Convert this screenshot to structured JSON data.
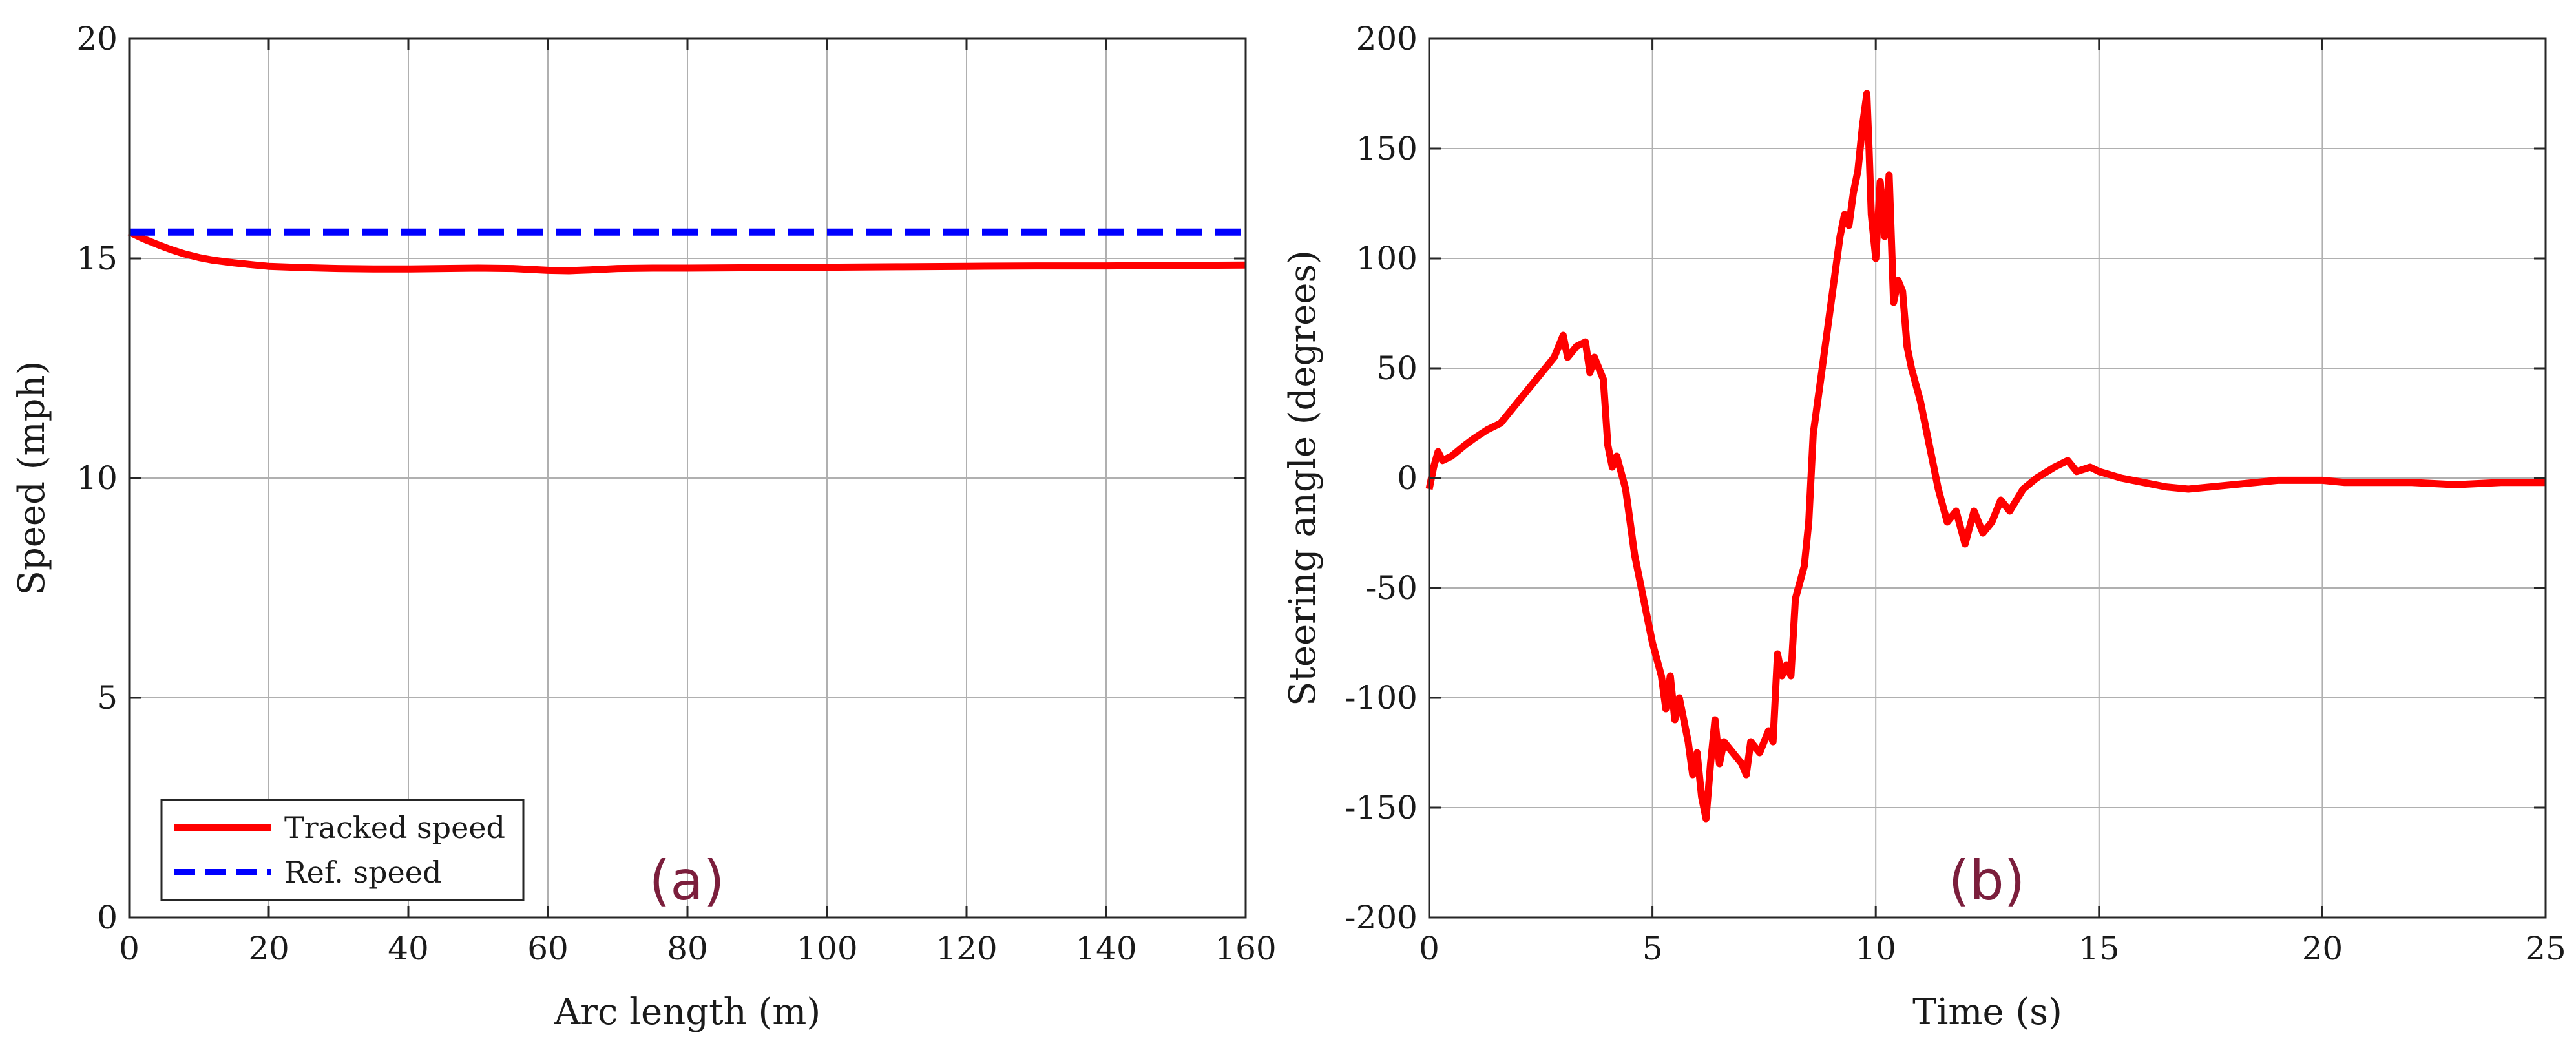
{
  "chart_data": [
    {
      "type": "line",
      "panel_label": "(a)",
      "xlabel": "Arc length (m)",
      "ylabel": "Speed (mph)",
      "xlim": [
        0,
        160
      ],
      "ylim": [
        0,
        20
      ],
      "xticks": [
        0,
        20,
        40,
        60,
        80,
        100,
        120,
        140,
        160
      ],
      "yticks": [
        0,
        5,
        10,
        15,
        20
      ],
      "grid": true,
      "legend_position": "bottom-left",
      "series": [
        {
          "name": "Tracked speed",
          "color": "#ff0000",
          "style": "solid",
          "x": [
            0,
            2,
            4,
            6,
            8,
            10,
            12,
            15,
            18,
            20,
            25,
            30,
            35,
            40,
            45,
            50,
            55,
            60,
            63,
            66,
            70,
            75,
            80,
            90,
            100,
            110,
            120,
            130,
            140,
            150,
            160
          ],
          "y": [
            15.6,
            15.45,
            15.32,
            15.2,
            15.1,
            15.02,
            14.96,
            14.9,
            14.85,
            14.82,
            14.79,
            14.77,
            14.76,
            14.76,
            14.77,
            14.78,
            14.77,
            14.73,
            14.72,
            14.74,
            14.77,
            14.78,
            14.78,
            14.79,
            14.8,
            14.81,
            14.82,
            14.83,
            14.83,
            14.84,
            14.85
          ]
        },
        {
          "name": "Ref. speed",
          "color": "#0000ff",
          "style": "dashed",
          "x": [
            0,
            160
          ],
          "y": [
            15.6,
            15.6
          ]
        }
      ]
    },
    {
      "type": "line",
      "panel_label": "(b)",
      "xlabel": "Time (s)",
      "ylabel": "Steering angle (degrees)",
      "xlim": [
        0,
        25
      ],
      "ylim": [
        -200,
        200
      ],
      "xticks": [
        0,
        5,
        10,
        15,
        20,
        25
      ],
      "yticks": [
        -200,
        -150,
        -100,
        -50,
        0,
        50,
        100,
        150,
        200
      ],
      "grid": true,
      "series": [
        {
          "color": "#ff0000",
          "style": "solid",
          "x": [
            0,
            0.1,
            0.2,
            0.3,
            0.5,
            0.8,
            1.0,
            1.3,
            1.6,
            2.0,
            2.4,
            2.8,
            3.0,
            3.1,
            3.3,
            3.5,
            3.6,
            3.7,
            3.8,
            3.9,
            4.0,
            4.1,
            4.2,
            4.4,
            4.6,
            4.8,
            5.0,
            5.2,
            5.3,
            5.4,
            5.5,
            5.6,
            5.8,
            5.9,
            6.0,
            6.1,
            6.2,
            6.3,
            6.4,
            6.5,
            6.6,
            6.8,
            7.0,
            7.1,
            7.2,
            7.4,
            7.6,
            7.7,
            7.8,
            7.9,
            8.0,
            8.1,
            8.2,
            8.4,
            8.5,
            8.6,
            8.8,
            9.0,
            9.2,
            9.3,
            9.4,
            9.5,
            9.6,
            9.7,
            9.8,
            9.85,
            9.9,
            10.0,
            10.1,
            10.2,
            10.3,
            10.4,
            10.5,
            10.6,
            10.7,
            10.8,
            11.0,
            11.2,
            11.4,
            11.6,
            11.8,
            12.0,
            12.2,
            12.4,
            12.6,
            12.8,
            13.0,
            13.3,
            13.6,
            14.0,
            14.3,
            14.5,
            14.8,
            15.0,
            15.5,
            16.0,
            16.5,
            17.0,
            17.5,
            18.0,
            18.5,
            19.0,
            19.5,
            20.0,
            20.5,
            21.0,
            22.0,
            23.0,
            24.0,
            25.0
          ],
          "y": [
            -5,
            5,
            12,
            8,
            10,
            15,
            18,
            22,
            25,
            35,
            45,
            55,
            65,
            55,
            60,
            62,
            48,
            55,
            50,
            45,
            15,
            5,
            10,
            -5,
            -35,
            -55,
            -75,
            -90,
            -105,
            -90,
            -110,
            -100,
            -120,
            -135,
            -125,
            -145,
            -155,
            -130,
            -110,
            -130,
            -120,
            -125,
            -130,
            -135,
            -120,
            -125,
            -115,
            -120,
            -80,
            -90,
            -85,
            -90,
            -55,
            -40,
            -20,
            20,
            50,
            80,
            110,
            120,
            115,
            130,
            140,
            160,
            175,
            150,
            120,
            100,
            135,
            110,
            138,
            80,
            90,
            85,
            60,
            50,
            35,
            15,
            -5,
            -20,
            -15,
            -30,
            -15,
            -25,
            -20,
            -10,
            -15,
            -5,
            0,
            5,
            8,
            3,
            5,
            3,
            0,
            -2,
            -4,
            -5,
            -4,
            -3,
            -2,
            -1,
            -1,
            -1,
            -2,
            -2,
            -2,
            -3,
            -2,
            -2
          ]
        }
      ]
    }
  ]
}
